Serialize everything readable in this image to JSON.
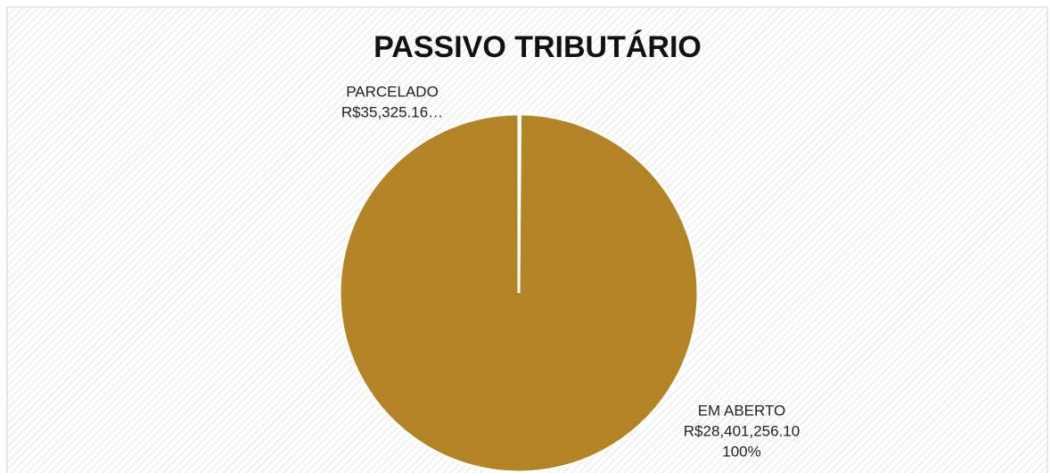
{
  "chart_data": {
    "type": "pie",
    "title": "PASSIVO TRIBUTÁRIO",
    "categories": [
      "PARCELADO",
      "EM ABERTO"
    ],
    "values": [
      35325.16,
      28401256.1
    ],
    "value_labels": [
      "R$35,325.16…",
      "R$28,401,256.10"
    ],
    "percent_labels": [
      null,
      "100%"
    ],
    "colors": [
      "#b38425",
      "#b38425"
    ]
  }
}
